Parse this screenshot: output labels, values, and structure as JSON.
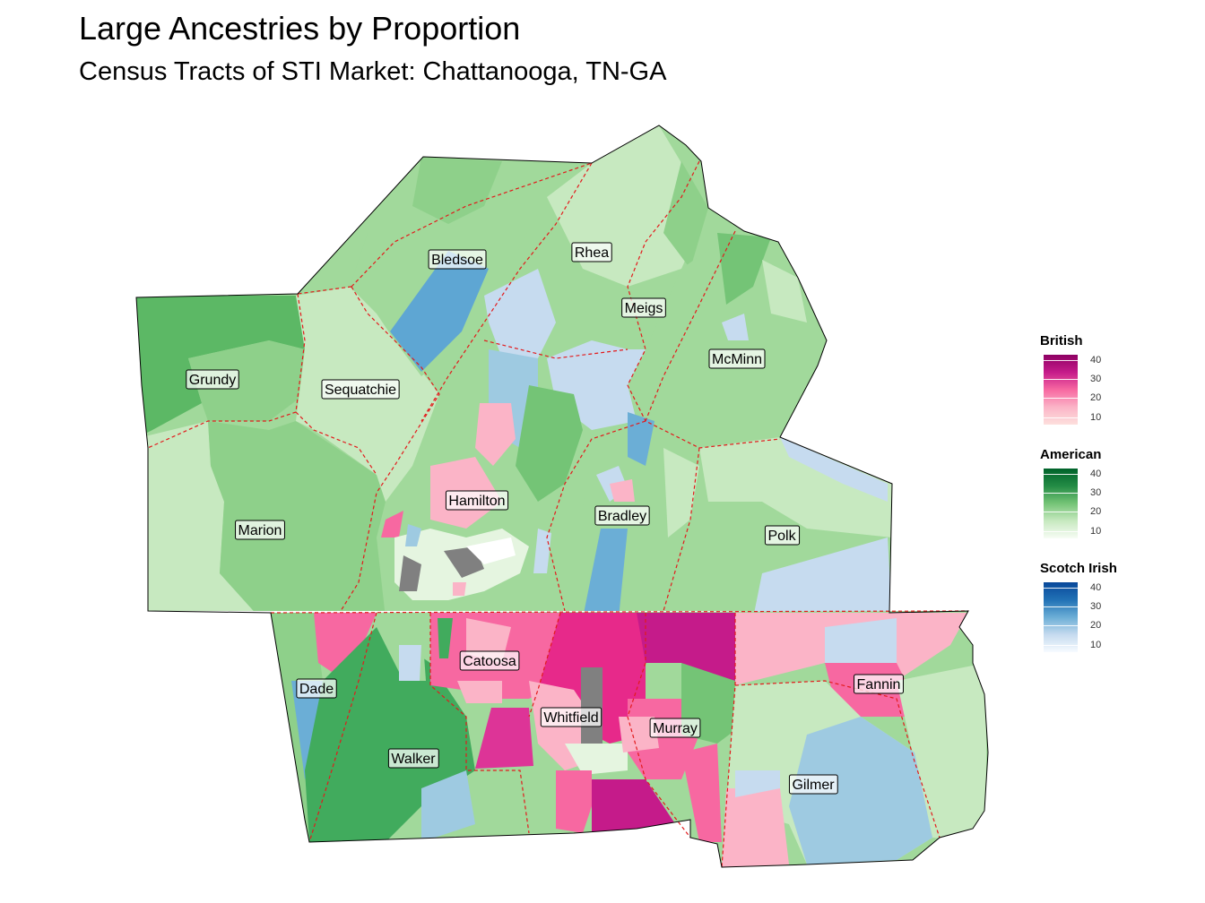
{
  "title": "Large Ancestries by Proportion",
  "subtitle": "Census Tracts of STI Market: Chattanooga, TN-GA",
  "legends": [
    {
      "title": "British",
      "ticks": [
        "40",
        "30",
        "20",
        "10"
      ],
      "colors": [
        "#8e0063",
        "#c51b8a",
        "#f768a1",
        "#fbb4c7",
        "#fde0dd"
      ]
    },
    {
      "title": "American",
      "ticks": [
        "40",
        "30",
        "20",
        "10"
      ],
      "colors": [
        "#00632a",
        "#238b45",
        "#74c476",
        "#c7e9c0",
        "#f7fcf5"
      ]
    },
    {
      "title": "Scotch Irish",
      "ticks": [
        "40",
        "30",
        "20",
        "10"
      ],
      "colors": [
        "#08489a",
        "#2171b5",
        "#6baed6",
        "#c6dbef",
        "#f7fbff"
      ]
    }
  ],
  "counties": [
    {
      "name": "Bledsoe"
    },
    {
      "name": "Rhea"
    },
    {
      "name": "Meigs"
    },
    {
      "name": "Grundy"
    },
    {
      "name": "Sequatchie"
    },
    {
      "name": "McMinn"
    },
    {
      "name": "Hamilton"
    },
    {
      "name": "Bradley"
    },
    {
      "name": "Marion"
    },
    {
      "name": "Polk"
    },
    {
      "name": "Catoosa"
    },
    {
      "name": "Dade"
    },
    {
      "name": "Fannin"
    },
    {
      "name": "Whitfield"
    },
    {
      "name": "Murray"
    },
    {
      "name": "Walker"
    },
    {
      "name": "Gilmer"
    }
  ],
  "colors": {
    "american_light": "#c7e9c0",
    "american_mid": "#a1d99b",
    "american_dark": "#74c476",
    "american_deep": "#41ab5d",
    "british_light": "#fbb4c7",
    "british_mid": "#f768a1",
    "british_deep": "#c51b8a",
    "scotch_light": "#c6dbef",
    "scotch_mid": "#9ecae1",
    "scotch_deep": "#6baed6",
    "missing": "#808080",
    "boundary": "#e31a1c"
  }
}
